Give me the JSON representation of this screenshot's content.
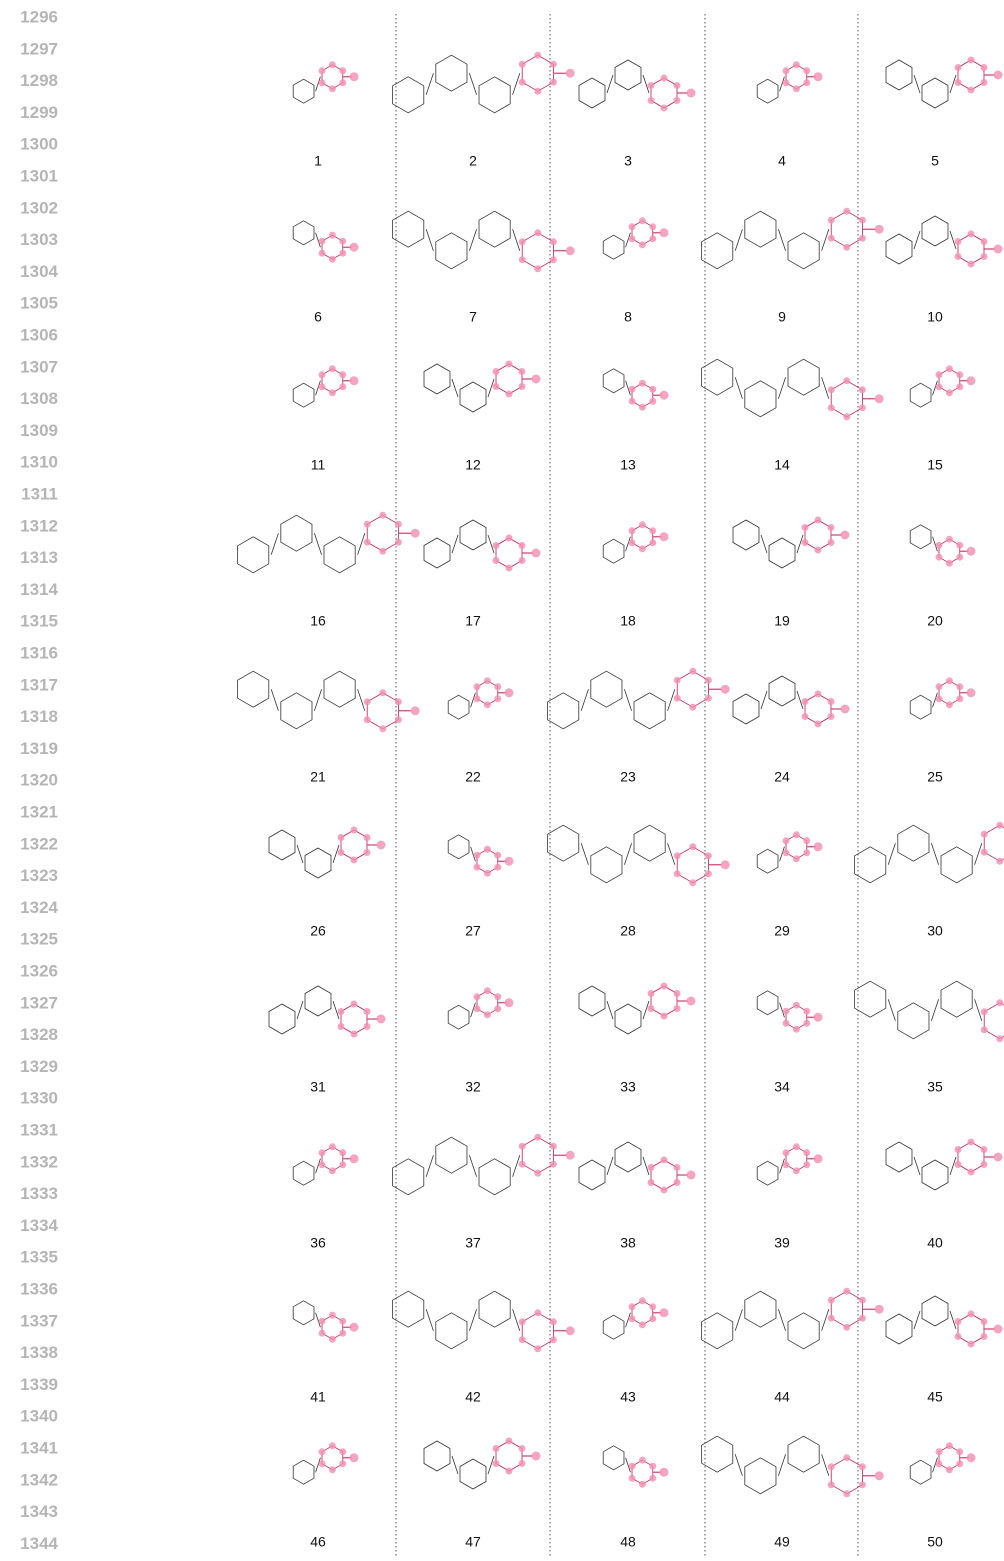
{
  "line_numbers": [
    1296,
    1297,
    1298,
    1299,
    1300,
    1301,
    1302,
    1303,
    1304,
    1305,
    1306,
    1307,
    1308,
    1309,
    1310,
    1311,
    1312,
    1313,
    1314,
    1315,
    1316,
    1317,
    1318,
    1319,
    1320,
    1321,
    1322,
    1323,
    1324,
    1325,
    1326,
    1327,
    1328,
    1329,
    1330,
    1331,
    1332,
    1333,
    1334,
    1335,
    1336,
    1337,
    1338,
    1339,
    1340,
    1341,
    1342,
    1343,
    1344
  ],
  "molecule_labels": [
    1,
    2,
    3,
    4,
    5,
    6,
    7,
    8,
    9,
    10,
    11,
    12,
    13,
    14,
    15,
    16,
    17,
    18,
    19,
    20,
    21,
    22,
    23,
    24,
    25,
    26,
    27,
    28,
    29,
    30,
    31,
    32,
    33,
    34,
    35,
    36,
    37,
    38,
    39,
    40,
    41,
    42,
    43,
    44,
    45,
    46,
    47,
    48,
    49,
    50
  ]
}
